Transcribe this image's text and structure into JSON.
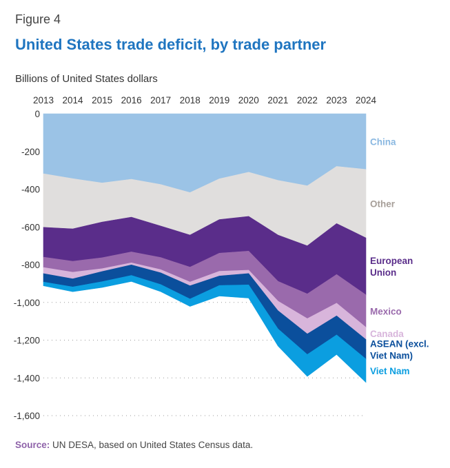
{
  "figure_label": "Figure 4",
  "title": "United States trade deficit, by trade partner",
  "units_label": "Billions of United States dollars",
  "source": {
    "label": "Source:",
    "text": " UN DESA, based on United States Census data."
  },
  "chart_data": {
    "type": "area",
    "stacked": true,
    "title": "United States trade deficit, by trade partner",
    "ylabel": "Billions of United States dollars",
    "x": [
      2013,
      2014,
      2015,
      2016,
      2017,
      2018,
      2019,
      2020,
      2021,
      2022,
      2023,
      2024
    ],
    "ylim": [
      -1600,
      0
    ],
    "yticks": [
      0,
      -200,
      -400,
      -600,
      -800,
      -1000,
      -1200,
      -1400,
      -1600
    ],
    "ytick_labels": [
      "0",
      "-200",
      "-400",
      "-600",
      "-800",
      "-1,000",
      "-1,200",
      "-1,400",
      "-1,600"
    ],
    "grid": "dotted-horizontal",
    "series": [
      {
        "name": "China",
        "color": "#9bc3e6",
        "label_color": "#8ab8e1",
        "label_lines": [
          "China"
        ],
        "values": [
          -318,
          -344,
          -367,
          -347,
          -375,
          -418,
          -345,
          -310,
          -353,
          -382,
          -279,
          -295
        ]
      },
      {
        "name": "Other",
        "color": "#e0dedd",
        "label_color": "#a79f99",
        "label_lines": [
          "Other"
        ],
        "values": [
          -284,
          -266,
          -207,
          -201,
          -220,
          -225,
          -216,
          -234,
          -290,
          -318,
          -303,
          -363
        ]
      },
      {
        "name": "European Union",
        "color": "#5a2d8a",
        "label_color": "#5a2d8a",
        "label_lines": [
          "European",
          "Union"
        ],
        "values": [
          -158,
          -172,
          -189,
          -184,
          -167,
          -170,
          -178,
          -184,
          -245,
          -255,
          -270,
          -302
        ]
      },
      {
        "name": "Mexico",
        "color": "#9a6aac",
        "label_color": "#9a6aac",
        "label_lines": [
          "Mexico"
        ],
        "values": [
          -55,
          -58,
          -58,
          -58,
          -64,
          -79,
          -96,
          -101,
          -105,
          -131,
          -152,
          -172
        ]
      },
      {
        "name": "Canada",
        "color": "#d8b5db",
        "label_color": "#d8b5db",
        "label_lines": [
          "Canada"
        ],
        "values": [
          -32,
          -35,
          -15,
          -11,
          -17,
          -20,
          -25,
          -18,
          -51,
          -81,
          -67,
          -65
        ]
      },
      {
        "name": "ASEAN (excl. Viet Nam)",
        "color": "#0b4f9c",
        "label_color": "#0b4f9c",
        "label_lines": [
          "ASEAN (excl.",
          "Viet Nam)"
        ],
        "values": [
          -45,
          -43,
          -54,
          -56,
          -62,
          -70,
          -50,
          -60,
          -96,
          -109,
          -101,
          -103
        ]
      },
      {
        "name": "Viet Nam",
        "color": "#0b9ee0",
        "label_color": "#0b9ee0",
        "label_lines": [
          "Viet Nam"
        ],
        "values": [
          -20,
          -25,
          -31,
          -32,
          -38,
          -39,
          -56,
          -70,
          -91,
          -116,
          -104,
          -124
        ]
      }
    ]
  }
}
